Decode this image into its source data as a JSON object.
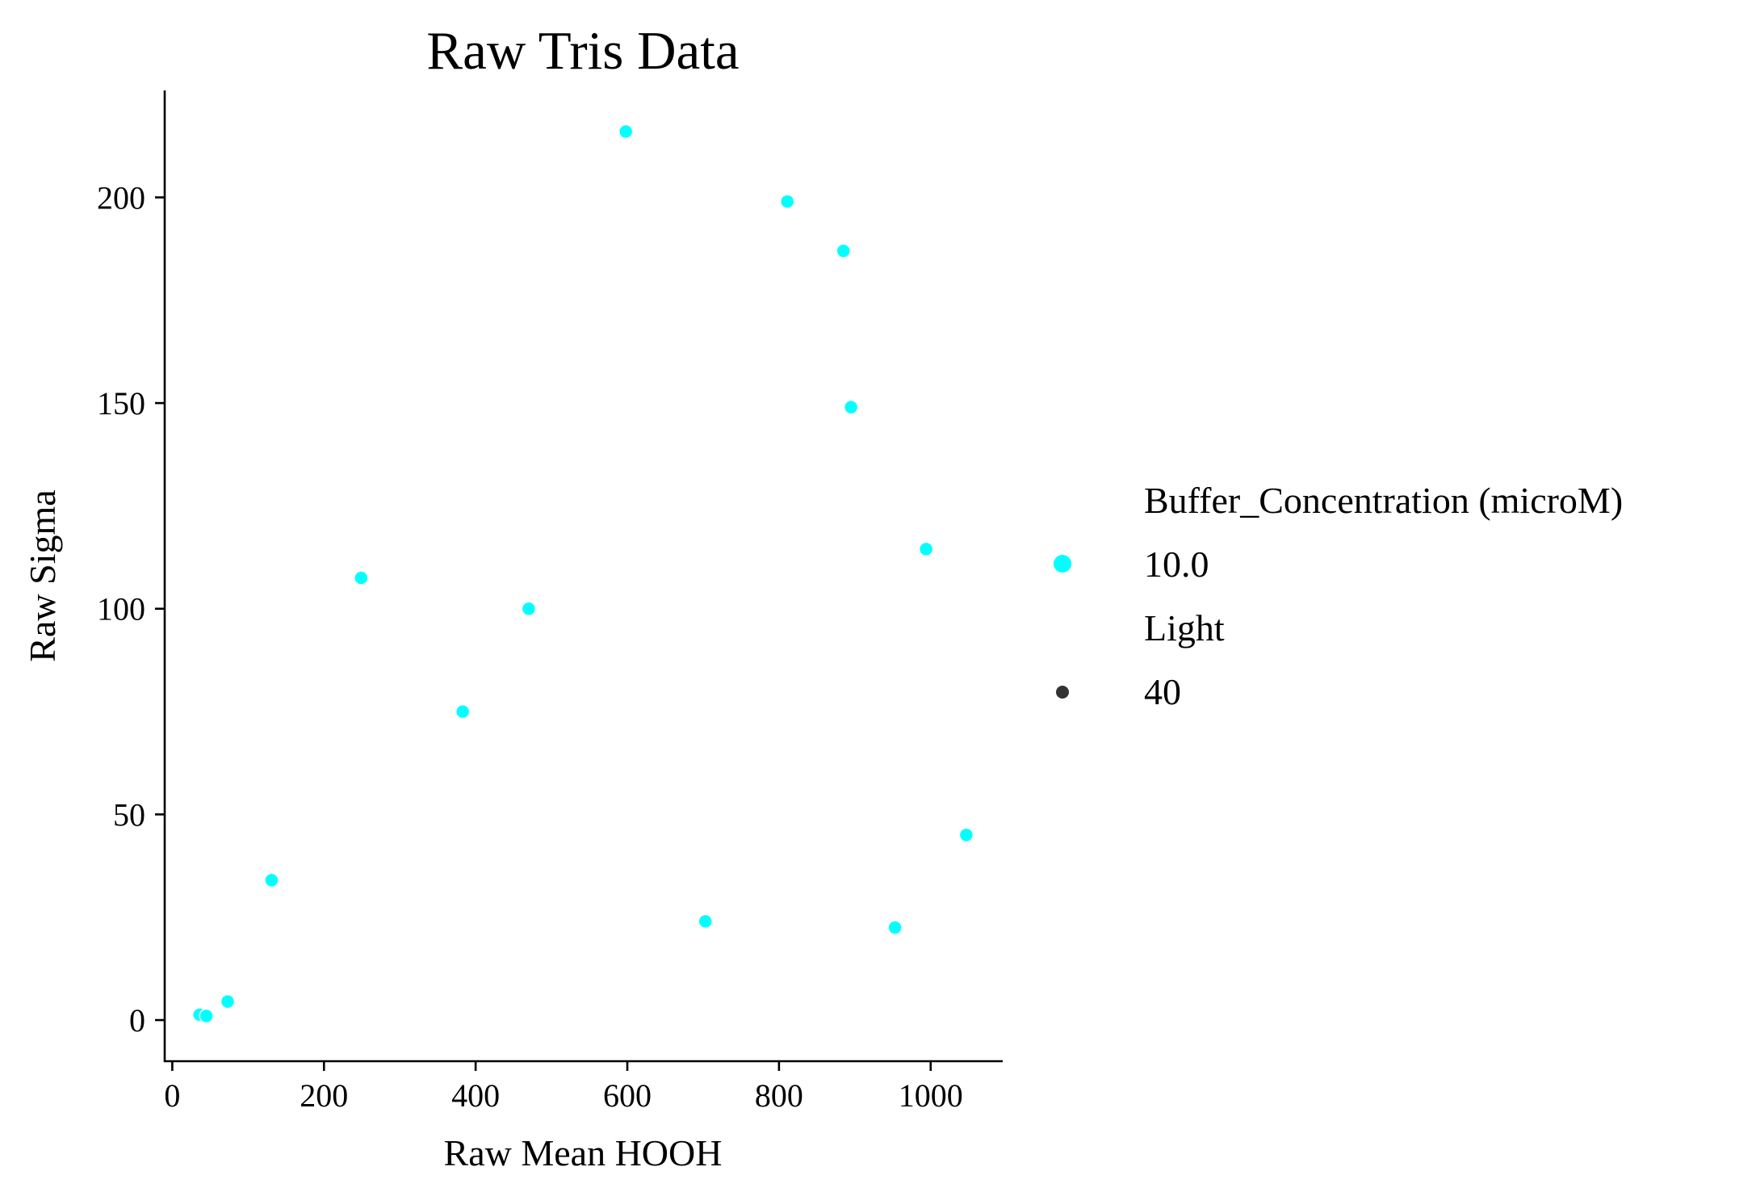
{
  "chart_data": {
    "type": "scatter",
    "title": "Raw Tris Data",
    "xlabel": "Raw Mean HOOH",
    "ylabel": "Raw Sigma",
    "xlim": [
      -10,
      1095
    ],
    "ylim": [
      -10,
      226
    ],
    "xticks": [
      0,
      200,
      400,
      600,
      800,
      1000
    ],
    "yticks": [
      0,
      50,
      100,
      150,
      200
    ],
    "xtick_labels": [
      "0",
      "200",
      "400",
      "600",
      "800",
      "1000"
    ],
    "ytick_labels": [
      "0",
      "50",
      "100",
      "150",
      "200"
    ],
    "grid": false,
    "legend_placement": "right",
    "series": [
      {
        "hue": "10.0",
        "size": "40",
        "color": "#00ffff",
        "points": [
          {
            "x": 36,
            "y": 1.3
          },
          {
            "x": 45,
            "y": 1.0
          },
          {
            "x": 73,
            "y": 4.5
          },
          {
            "x": 131,
            "y": 34
          },
          {
            "x": 249,
            "y": 107.5
          },
          {
            "x": 383,
            "y": 75
          },
          {
            "x": 470,
            "y": 100
          },
          {
            "x": 598,
            "y": 216
          },
          {
            "x": 703,
            "y": 24
          },
          {
            "x": 811,
            "y": 199
          },
          {
            "x": 885,
            "y": 187
          },
          {
            "x": 895,
            "y": 149
          },
          {
            "x": 953,
            "y": 22.5
          },
          {
            "x": 994,
            "y": 114.5
          },
          {
            "x": 1047,
            "y": 45
          }
        ]
      }
    ],
    "legend": {
      "hue_title": "Buffer_Concentration (microM)",
      "hue_entries": [
        {
          "label": "10.0",
          "color": "#00ffff"
        }
      ],
      "size_title": "Light",
      "size_entries": [
        {
          "label": "40",
          "color": "#333333"
        }
      ]
    }
  }
}
